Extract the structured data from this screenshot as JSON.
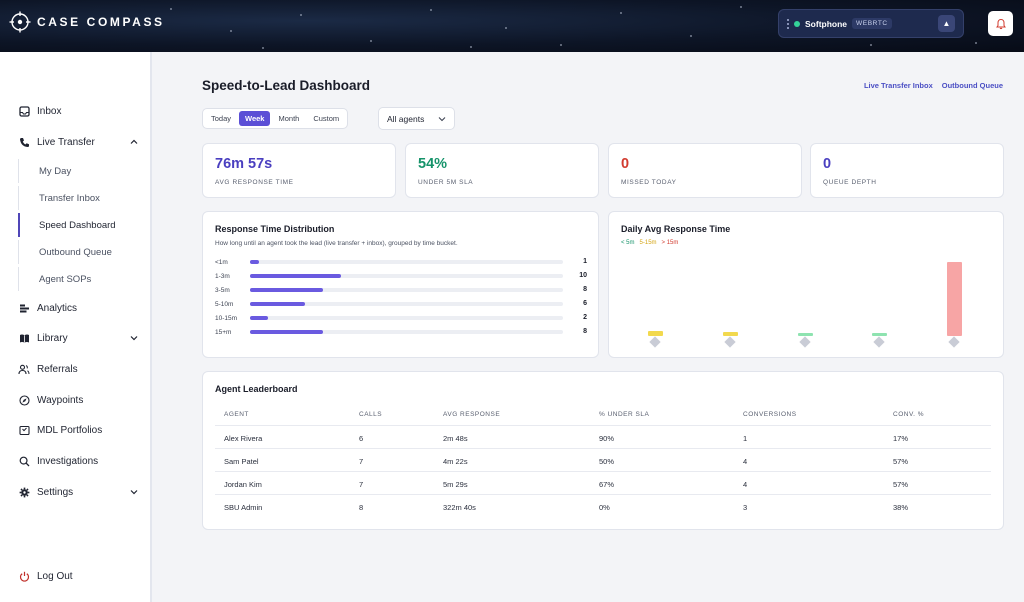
{
  "app": {
    "name": "CASE COMPASS",
    "softphone": {
      "label": "Softphone",
      "badge": "WEBRTC",
      "status_color": "#34d399",
      "arrow": "▲"
    },
    "accent": "#5b4fd6"
  },
  "sidebar": {
    "items": [
      {
        "label": "Inbox",
        "icon": "inbox-icon"
      },
      {
        "label": "Live Transfer",
        "icon": "phone-icon",
        "expanded": true
      },
      {
        "label": "Analytics",
        "icon": "bar-chart-icon"
      },
      {
        "label": "Library",
        "icon": "book-icon"
      },
      {
        "label": "Referrals",
        "icon": "users-icon"
      },
      {
        "label": "Waypoints",
        "icon": "compass-icon"
      },
      {
        "label": "MDL Portfolios",
        "icon": "folder-icon"
      },
      {
        "label": "Investigations",
        "icon": "search-icon"
      },
      {
        "label": "Settings",
        "icon": "gear-icon"
      }
    ],
    "sub_items": [
      {
        "label": "My Day"
      },
      {
        "label": "Transfer Inbox"
      },
      {
        "label": "Speed Dashboard",
        "active": true
      },
      {
        "label": "Outbound Queue"
      },
      {
        "label": "Agent SOPs"
      }
    ],
    "logout": "Log Out"
  },
  "header": {
    "title": "Speed-to-Lead Dashboard",
    "links": [
      "Live Transfer Inbox",
      "Outbound Queue"
    ]
  },
  "filters": {
    "ranges": [
      "Today",
      "Week",
      "Month",
      "Custom"
    ],
    "active_range": "Week",
    "agent": "All agents"
  },
  "kpis": [
    {
      "value": "76m 57s",
      "label": "AVG RESPONSE TIME",
      "color": "#4a3fc0"
    },
    {
      "value": "54%",
      "label": "UNDER 5M SLA",
      "color": "#16936a"
    },
    {
      "value": "0",
      "label": "MISSED TODAY",
      "color": "#d23b2f"
    },
    {
      "value": "0",
      "label": "QUEUE DEPTH",
      "color": "#4a3fc0"
    }
  ],
  "distribution": {
    "title": "Response Time Distribution",
    "subtitle": "How long until an agent took the lead (live transfer + inbox), grouped by time bucket.",
    "max": 10,
    "rows": [
      {
        "label": "<1m",
        "count": 1
      },
      {
        "label": "1-3m",
        "count": 10
      },
      {
        "label": "3-5m",
        "count": 8
      },
      {
        "label": "5-10m",
        "count": 6
      },
      {
        "label": "10-15m",
        "count": 2
      },
      {
        "label": "15+m",
        "count": 8
      }
    ]
  },
  "daily": {
    "title": "Daily Avg Response Time",
    "legend": [
      {
        "label": "< 5m",
        "color": "#16936a"
      },
      {
        "label": "5-15m",
        "color": "#d4a514"
      },
      {
        "label": "> 15m",
        "color": "#d23b2f"
      }
    ]
  },
  "leaderboard": {
    "title": "Agent Leaderboard",
    "columns": [
      "AGENT",
      "CALLS",
      "AVG RESPONSE",
      "% UNDER SLA",
      "CONVERSIONS",
      "CONV. %"
    ],
    "rows": [
      [
        "Alex Rivera",
        "6",
        "2m 48s",
        "90%",
        "1",
        "17%"
      ],
      [
        "Sam Patel",
        "7",
        "4m 22s",
        "50%",
        "4",
        "57%"
      ],
      [
        "Jordan Kim",
        "7",
        "5m 29s",
        "67%",
        "4",
        "57%"
      ],
      [
        "SBU Admin",
        "8",
        "322m 40s",
        "0%",
        "3",
        "38%"
      ]
    ]
  }
}
